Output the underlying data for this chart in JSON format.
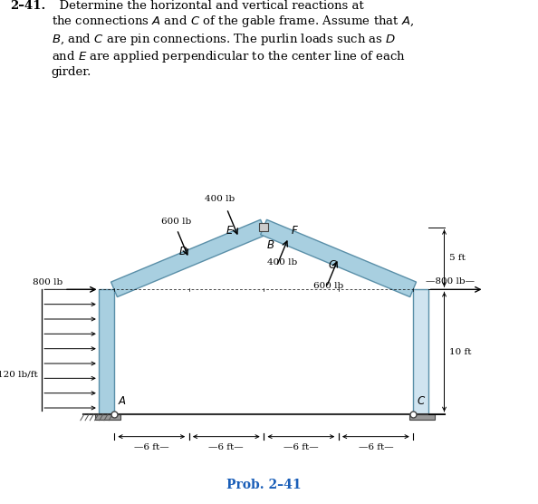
{
  "fig_width": 5.94,
  "fig_height": 5.56,
  "dpi": 100,
  "text_color": "#000000",
  "blue_struct": "#a8cfe0",
  "blue_struct_edge": "#5a8fa8",
  "gray_struct": "#d0e4f0",
  "gray_struct_edge": "#5a8fa8",
  "ground_color": "#555555",
  "problem_number": "2–41.",
  "prob_label": "Prob. 2–41",
  "prob_label_color": "#1a5eb8",
  "xlim": [
    -7,
    31
  ],
  "ylim": [
    -3.5,
    19
  ]
}
